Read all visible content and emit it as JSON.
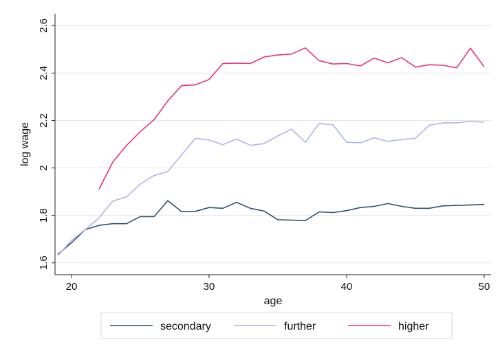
{
  "chart_data": {
    "type": "line",
    "title": "",
    "xlabel": "age",
    "ylabel": "log wage",
    "xlim": [
      19,
      50
    ],
    "ylim": [
      1.6,
      2.6
    ],
    "xticks": [
      20,
      30,
      40,
      50
    ],
    "yticks": [
      1.6,
      1.8,
      2.0,
      2.2,
      2.4,
      2.6
    ],
    "xtick_labels": [
      "20",
      "30",
      "40",
      "50"
    ],
    "ytick_labels": [
      "1.6",
      "1.8",
      "2",
      "2.2",
      "2.4",
      "2.6"
    ],
    "grid": "horizontal",
    "legend_position": "bottom",
    "series": [
      {
        "name": "secondary",
        "color": "#2e4f6e",
        "x": [
          19,
          20,
          21,
          22,
          23,
          24,
          25,
          26,
          27,
          28,
          29,
          30,
          31,
          32,
          33,
          34,
          35,
          36,
          37,
          38,
          39,
          40,
          41,
          42,
          43,
          44,
          45,
          46,
          47,
          48,
          49,
          50
        ],
        "values": [
          1.635,
          1.685,
          1.74,
          1.758,
          1.765,
          1.765,
          1.795,
          1.795,
          1.862,
          1.816,
          1.817,
          1.833,
          1.83,
          1.855,
          1.83,
          1.818,
          1.782,
          1.78,
          1.778,
          1.815,
          1.812,
          1.82,
          1.833,
          1.838,
          1.85,
          1.838,
          1.83,
          1.83,
          1.84,
          1.842,
          1.844,
          1.846
        ]
      },
      {
        "name": "further",
        "color": "#aeb4ea",
        "x": [
          19,
          20,
          21,
          22,
          23,
          24,
          25,
          26,
          27,
          28,
          29,
          30,
          31,
          32,
          33,
          34,
          35,
          36,
          37,
          38,
          39,
          40,
          41,
          42,
          43,
          44,
          45,
          46,
          47,
          48,
          49,
          50
        ],
        "values": [
          1.63,
          1.695,
          1.74,
          1.79,
          1.86,
          1.878,
          1.932,
          1.968,
          1.985,
          2.055,
          2.125,
          2.118,
          2.098,
          2.122,
          2.095,
          2.103,
          2.135,
          2.163,
          2.108,
          2.187,
          2.182,
          2.108,
          2.106,
          2.127,
          2.112,
          2.12,
          2.125,
          2.18,
          2.19,
          2.19,
          2.197,
          2.192
        ]
      },
      {
        "name": "higher",
        "color": "#e8317d",
        "x": [
          22,
          23,
          24,
          25,
          26,
          27,
          28,
          29,
          30,
          31,
          32,
          33,
          34,
          35,
          36,
          37,
          38,
          39,
          40,
          41,
          42,
          43,
          44,
          45,
          46,
          47,
          48,
          49,
          50
        ],
        "values": [
          1.91,
          2.025,
          2.095,
          2.153,
          2.203,
          2.283,
          2.347,
          2.35,
          2.373,
          2.44,
          2.442,
          2.44,
          2.468,
          2.476,
          2.48,
          2.506,
          2.452,
          2.438,
          2.44,
          2.43,
          2.463,
          2.443,
          2.465,
          2.425,
          2.435,
          2.433,
          2.422,
          2.505,
          2.426
        ]
      }
    ]
  }
}
